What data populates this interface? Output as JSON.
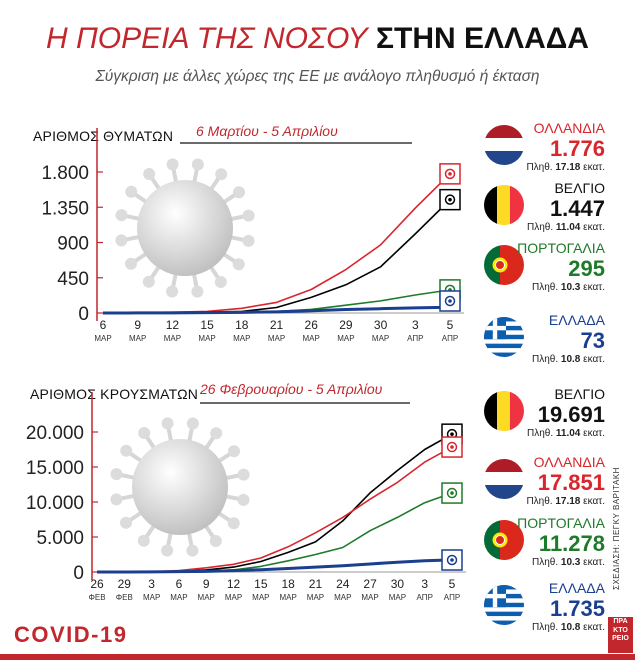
{
  "header": {
    "title_part1": "Η ΠΟΡΕΙΑ ΤΗΣ ΝΟΣΟΥ",
    "title_part2": "ΣΤΗΝ ΕΛΛΑΔΑ",
    "subtitle": "Σύγκριση με άλλες χώρες της ΕΕ με ανάλογο πληθυσμό ή έκταση"
  },
  "footer": {
    "covid_label": "COVID-19",
    "credit": "ΣΧΕΔΙΑΣΗ: ΠΕΓΚΥ ΒΑΡΙΤΑΚΗ",
    "logo_lines": [
      "ΠΡΑ",
      "ΚΤΟ",
      "ΡΕΙΟ"
    ]
  },
  "colors": {
    "netherlands": "#d8262c",
    "belgium": "#000000",
    "portugal": "#1f7a2a",
    "greece": "#1a3f8f",
    "accent": "#c1272d"
  },
  "deaths_panel": {
    "label": "ΑΡΙΘΜΟΣ ΘΥΜΑΤΩΝ",
    "period": "6 Μαρτίου - 5 Απριλίου",
    "countries": [
      {
        "key": "netherlands",
        "name": "ΟΛΛΑΝΔΙΑ",
        "value": "1.776",
        "pop_prefix": "Πληθ.",
        "pop": "17.18",
        "pop_unit": "εκατ.",
        "flag_icon": "netherlands-flag-icon"
      },
      {
        "key": "belgium",
        "name": "ΒΕΛΓΙΟ",
        "value": "1.447",
        "pop_prefix": "Πληθ.",
        "pop": "11.04",
        "pop_unit": "εκατ.",
        "flag_icon": "belgium-flag-icon"
      },
      {
        "key": "portugal",
        "name": "ΠΟΡΤΟΓΑΛΙΑ",
        "value": "295",
        "pop_prefix": "Πληθ.",
        "pop": "10.3",
        "pop_unit": "εκατ.",
        "flag_icon": "portugal-flag-icon"
      },
      {
        "key": "greece",
        "name": "ΕΛΛΑΔΑ",
        "value": "73",
        "pop_prefix": "Πληθ.",
        "pop": "10.8",
        "pop_unit": "εκατ.",
        "flag_icon": "greece-flag-icon"
      }
    ]
  },
  "cases_panel": {
    "label": "ΑΡΙΘΜΟΣ ΚΡΟΥΣΜΑΤΩΝ",
    "period": "26 Φεβρουαρίου - 5 Απριλίου",
    "countries": [
      {
        "key": "belgium",
        "name": "ΒΕΛΓΙΟ",
        "value": "19.691",
        "pop_prefix": "Πληθ.",
        "pop": "11.04",
        "pop_unit": "εκατ.",
        "flag_icon": "belgium-flag-icon"
      },
      {
        "key": "netherlands",
        "name": "ΟΛΛΑΝΔΙΑ",
        "value": "17.851",
        "pop_prefix": "Πληθ.",
        "pop": "17.18",
        "pop_unit": "εκατ.",
        "flag_icon": "netherlands-flag-icon"
      },
      {
        "key": "portugal",
        "name": "ΠΟΡΤΟΓΑΛΙΑ",
        "value": "11.278",
        "pop_prefix": "Πληθ.",
        "pop": "10.3",
        "pop_unit": "εκατ.",
        "flag_icon": "portugal-flag-icon"
      },
      {
        "key": "greece",
        "name": "ΕΛΛΑΔΑ",
        "value": "1.735",
        "pop_prefix": "Πληθ.",
        "pop": "10.8",
        "pop_unit": "εκατ.",
        "flag_icon": "greece-flag-icon"
      }
    ]
  },
  "chart_data": [
    {
      "type": "line",
      "title": "ΑΡΙΘΜΟΣ ΘΥΜΑΤΩΝ",
      "subtitle": "6 Μαρτίου - 5 Απριλίου",
      "xlabel": "",
      "ylabel": "",
      "ylim": [
        0,
        1800
      ],
      "yticks": [
        0,
        450,
        900,
        1350,
        1800
      ],
      "ytick_labels": [
        "0",
        "450",
        "900",
        "1.350",
        "1.800"
      ],
      "x": [
        6,
        9,
        12,
        15,
        18,
        21,
        24,
        27,
        30,
        33,
        36
      ],
      "x_tick_labels": [
        [
          "6",
          "ΜΑΡ"
        ],
        [
          "9",
          "ΜΑΡ"
        ],
        [
          "12",
          "ΜΑΡ"
        ],
        [
          "15",
          "ΜΑΡ"
        ],
        [
          "18",
          "ΜΑΡ"
        ],
        [
          "21",
          "ΜΑΡ"
        ],
        [
          "26",
          "ΜΑΡ"
        ],
        [
          "29",
          "ΜΑΡ"
        ],
        [
          "30",
          "ΜΑΡ"
        ],
        [
          "3",
          "ΑΠΡ"
        ],
        [
          "5",
          "ΑΠΡ"
        ]
      ],
      "series": [
        {
          "name": "ΟΛΛΑΝΔΙΑ",
          "color": "#d8262c",
          "values": [
            0,
            5,
            10,
            20,
            60,
            135,
            300,
            555,
            870,
            1340,
            1776
          ]
        },
        {
          "name": "ΒΕΛΓΙΟ",
          "color": "#000000",
          "values": [
            0,
            2,
            5,
            10,
            20,
            70,
            200,
            360,
            590,
            1010,
            1447
          ]
        },
        {
          "name": "ΠΟΡΤΟΓΑΛΙΑ",
          "color": "#1f7a2a",
          "values": [
            0,
            0,
            2,
            5,
            10,
            20,
            45,
            100,
            155,
            230,
            295
          ]
        },
        {
          "name": "ΕΛΛΑΔΑ",
          "color": "#1a3f8f",
          "values": [
            0,
            1,
            2,
            4,
            8,
            15,
            28,
            45,
            55,
            65,
            73
          ]
        }
      ],
      "grid": false,
      "legend": "right"
    },
    {
      "type": "line",
      "title": "ΑΡΙΘΜΟΣ ΚΡΟΥΣΜΑΤΩΝ",
      "subtitle": "26 Φεβρουαρίου - 5 Απριλίου",
      "xlabel": "",
      "ylabel": "",
      "ylim": [
        0,
        20000
      ],
      "yticks": [
        0,
        5000,
        10000,
        15000,
        20000
      ],
      "ytick_labels": [
        "0",
        "5.000",
        "10.000",
        "15.000",
        "20.000"
      ],
      "x": [
        0,
        3,
        6,
        9,
        12,
        15,
        18,
        21,
        24,
        27,
        30,
        33,
        36,
        39
      ],
      "x_tick_labels": [
        [
          "26",
          "ΦΕΒ"
        ],
        [
          "29",
          "ΦΕΒ"
        ],
        [
          "3",
          "ΜΑΡ"
        ],
        [
          "6",
          "ΜΑΡ"
        ],
        [
          "9",
          "ΜΑΡ"
        ],
        [
          "12",
          "ΜΑΡ"
        ],
        [
          "15",
          "ΜΑΡ"
        ],
        [
          "18",
          "ΜΑΡ"
        ],
        [
          "21",
          "ΜΑΡ"
        ],
        [
          "24",
          "ΜΑΡ"
        ],
        [
          "27",
          "ΜΑΡ"
        ],
        [
          "30",
          "ΜΑΡ"
        ],
        [
          "3",
          "ΑΠΡ"
        ],
        [
          "5",
          "ΑΠΡ"
        ]
      ],
      "series": [
        {
          "name": "ΒΕΛΓΙΟ",
          "color": "#000000",
          "values": [
            0,
            0,
            10,
            100,
            300,
            700,
            1500,
            2800,
            4300,
            7300,
            11300,
            14500,
            17500,
            19691
          ]
        },
        {
          "name": "ΟΛΛΑΝΔΙΑ",
          "color": "#d8262c",
          "values": [
            0,
            5,
            30,
            200,
            600,
            1100,
            2000,
            3600,
            5600,
            7800,
            10400,
            12800,
            15700,
            17851
          ]
        },
        {
          "name": "ΠΟΡΤΟΓΑΛΙΑ",
          "color": "#1f7a2a",
          "values": [
            0,
            0,
            5,
            30,
            100,
            300,
            800,
            1600,
            2500,
            3500,
            5900,
            7800,
            9900,
            11278
          ]
        },
        {
          "name": "ΕΛΛΑΔΑ",
          "color": "#1a3f8f",
          "values": [
            0,
            5,
            10,
            50,
            90,
            200,
            330,
            500,
            700,
            900,
            1150,
            1400,
            1600,
            1735
          ]
        }
      ],
      "grid": false,
      "legend": "right"
    }
  ]
}
